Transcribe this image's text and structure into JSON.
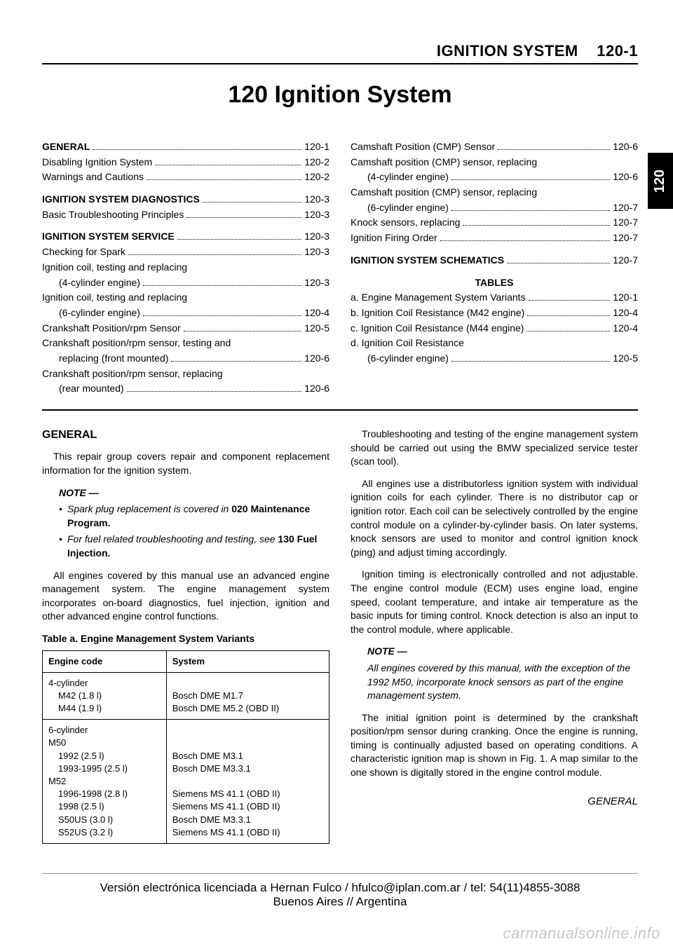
{
  "header": {
    "section_title": "IGNITION SYSTEM",
    "page_ref": "120-1"
  },
  "main_title": "120 Ignition System",
  "side_tab": "120",
  "toc": {
    "left": [
      {
        "label": "GENERAL",
        "page": "120-1",
        "heading": true
      },
      {
        "label": "Disabling Ignition System",
        "page": "120-2",
        "indent": true
      },
      {
        "label": "Warnings and Cautions",
        "page": "120-2",
        "indent": true
      },
      {
        "gap": true
      },
      {
        "label": "IGNITION SYSTEM DIAGNOSTICS",
        "page": "120-3",
        "heading": true
      },
      {
        "label": "Basic Troubleshooting Principles",
        "page": "120-3",
        "indent": true
      },
      {
        "gap": true
      },
      {
        "label": "IGNITION SYSTEM SERVICE",
        "page": "120-3",
        "heading": true
      },
      {
        "label": "Checking for Spark",
        "page": "120-3",
        "indent": true
      },
      {
        "label": "Ignition coil, testing and replacing",
        "cont": "(4-cylinder engine)",
        "page": "120-3",
        "indent": true
      },
      {
        "label": "Ignition coil, testing and replacing",
        "cont": "(6-cylinder engine)",
        "page": "120-4",
        "indent": true
      },
      {
        "label": "Crankshaft Position/rpm Sensor",
        "page": "120-5",
        "indent": true
      },
      {
        "label": "Crankshaft position/rpm sensor, testing and",
        "cont": "replacing (front mounted)",
        "page": "120-6",
        "indent": true
      },
      {
        "label": "Crankshaft position/rpm sensor, replacing",
        "cont": "(rear mounted)",
        "page": "120-6",
        "indent": true
      }
    ],
    "right": [
      {
        "label": "Camshaft Position (CMP) Sensor",
        "page": "120-6",
        "indent": true
      },
      {
        "label": "Camshaft position (CMP) sensor, replacing",
        "cont": "(4-cylinder engine)",
        "page": "120-6",
        "indent": true
      },
      {
        "label": "Camshaft position (CMP) sensor, replacing",
        "cont": "(6-cylinder engine)",
        "page": "120-7",
        "indent": true
      },
      {
        "label": "Knock sensors, replacing",
        "page": "120-7",
        "indent": true
      },
      {
        "label": "Ignition Firing Order",
        "page": "120-7",
        "indent": true
      },
      {
        "gap": true
      },
      {
        "label": "IGNITION SYSTEM SCHEMATICS",
        "page": "120-7",
        "heading": true
      }
    ],
    "tables_heading": "TABLES",
    "tables": [
      {
        "label": "a. Engine Management System Variants",
        "page": "120-1"
      },
      {
        "label": "b. Ignition Coil Resistance (M42 engine)",
        "page": "120-4"
      },
      {
        "label": "c. Ignition Coil Resistance (M44 engine)",
        "page": "120-4"
      },
      {
        "label": "d. Ignition Coil Resistance",
        "cont": "(6-cylinder engine)",
        "page": "120-5"
      }
    ]
  },
  "body": {
    "general_heading": "GENERAL",
    "intro": "This repair group covers repair and component replacement information for the ignition system.",
    "note1_head": "NOTE —",
    "note1_b1_pre": "Spark plug replacement is covered in ",
    "note1_b1_bold": "020 Maintenance Program.",
    "note1_b2_pre": "For fuel related troubleshooting and testing, see ",
    "note1_b2_bold": "130 Fuel Injection.",
    "para2": "All engines covered by this manual use an advanced engine management system. The engine management system incorporates on-board diagnostics, fuel injection, ignition and other advanced engine control functions.",
    "table_caption": "Table a. Engine Management System Variants",
    "eng_table": {
      "headers": [
        "Engine code",
        "System"
      ],
      "rows": [
        {
          "group": "4-cylinder",
          "items": [
            {
              "code": "M42 (1.8 l)",
              "sys": "Bosch DME M1.7"
            },
            {
              "code": "M44 (1.9 l)",
              "sys": "Bosch DME M5.2 (OBD II)"
            }
          ]
        },
        {
          "group": "6-cylinder",
          "items": [
            {
              "sub": "M50"
            },
            {
              "code": "1992 (2.5 l)",
              "sys": "Bosch DME M3.1"
            },
            {
              "code": "1993-1995 (2.5 l)",
              "sys": "Bosch DME M3.3.1"
            },
            {
              "sub": "M52"
            },
            {
              "code": "1996-1998 (2.8 l)",
              "sys": "Siemens MS 41.1 (OBD II)"
            },
            {
              "code": "1998 (2.5 l)",
              "sys": "Siemens MS 41.1 (OBD II)"
            },
            {
              "code": "S50US (3.0 l)",
              "sys": "Bosch DME M3.3.1"
            },
            {
              "code": "S52US (3.2 l)",
              "sys": "Siemens MS 41.1 (OBD II)"
            }
          ]
        }
      ]
    },
    "right_p1": "Troubleshooting and testing of the engine management system should be carried out using the BMW specialized service tester (scan tool).",
    "right_p2": "All engines use a distributorless ignition system with individual ignition coils for each cylinder. There is no distributor cap or ignition rotor. Each coil can be selectively controlled by the engine control module on a cylinder-by-cylinder basis. On later systems, knock sensors are used to monitor and control ignition knock (ping) and adjust timing accordingly.",
    "right_p3": "Ignition timing is electronically controlled and not adjustable. The engine control module (ECM) uses engine load, engine speed, coolant temperature, and intake air temperature as the basic inputs for timing control. Knock detection is also an input to the control module, where applicable.",
    "note2_head": "NOTE —",
    "note2_text": "All engines covered by this manual, with the exception of the 1992 M50, incorporate knock sensors as part of the engine management system.",
    "right_p4": "The initial ignition point is determined by the crankshaft position/rpm sensor during cranking. Once the engine is running, timing is continually adjusted based on operating conditions. A characteristic ignition map is shown in Fig. 1. A map similar to the one shown is digitally stored in the engine control module."
  },
  "footer_section": "GENERAL",
  "license_l1": "Versión electrónica licenciada a Hernan Fulco / hfulco@iplan.com.ar / tel: 54(11)4855-3088",
  "license_l2": "Buenos Aires // Argentina",
  "watermark": "carmanualsonline.info"
}
